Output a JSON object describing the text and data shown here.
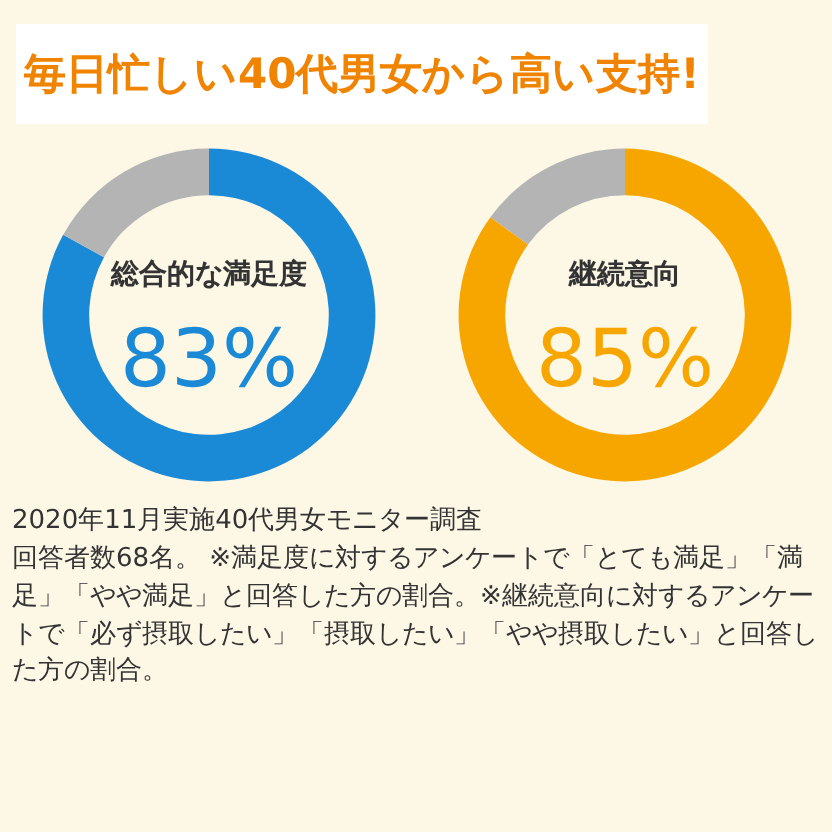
{
  "chart_data": [
    {
      "type": "donut",
      "title": "総合的な満足度",
      "categories": [
        null,
        null
      ],
      "values": [
        83,
        17
      ],
      "colors": [
        "#1a8ad6",
        "#b4b4b4"
      ],
      "value_labels": [
        "83%",
        null
      ],
      "annotations": [
        "毎日忙しい40代男女から高い支持!"
      ]
    },
    {
      "type": "donut",
      "title": "継続意向",
      "categories": [
        null,
        null
      ],
      "values": [
        85,
        15
      ],
      "colors": [
        "#f7a600",
        "#b4b4b4"
      ],
      "value_labels": [
        "85%",
        null
      ],
      "annotations": [
        "2020年11月実施40代男女モニター調査",
        "回答者数68名。 ※満足度に対するアンケートで「とても満足」「満足」「やや満足」と回答した方の割合。※継続意向に対するアンケートで「必ず摂取したい」「摂取したい」「やや摂取したい」と回答した方の割合。"
      ]
    }
  ]
}
